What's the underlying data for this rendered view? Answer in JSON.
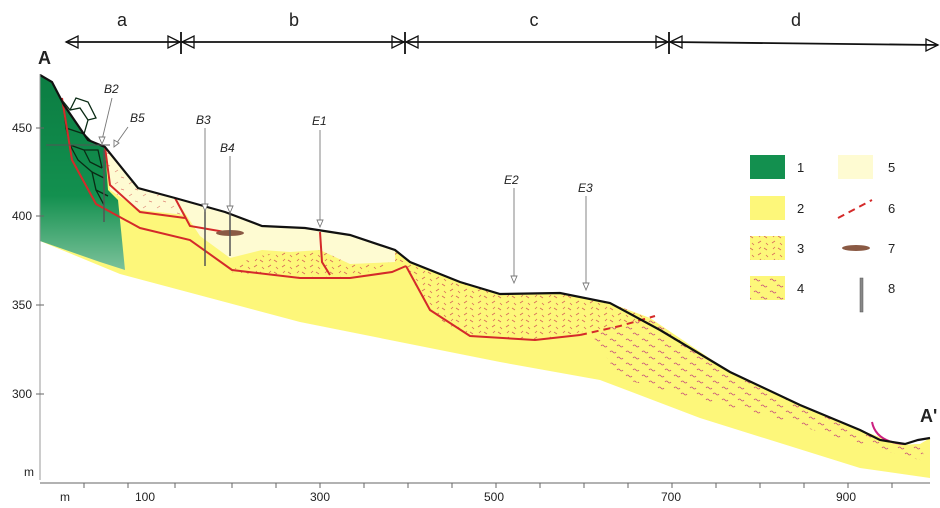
{
  "zones": [
    {
      "id": "a",
      "label": "a"
    },
    {
      "id": "b",
      "label": "b"
    },
    {
      "id": "c",
      "label": "c"
    },
    {
      "id": "d",
      "label": "d"
    }
  ],
  "profile_points": {
    "start": "A",
    "end": "A'"
  },
  "y_axis": {
    "unit": "m",
    "ticks": [
      "450",
      "400",
      "350",
      "300"
    ]
  },
  "x_axis": {
    "unit": "m",
    "ticks": [
      "100",
      "300",
      "500",
      "700",
      "900"
    ]
  },
  "boreholes": {
    "B2": "B2",
    "B5": "B5",
    "B3": "B3",
    "B4": "B4",
    "E1": "E1",
    "E2": "E2",
    "E3": "E3"
  },
  "legend": [
    "1",
    "2",
    "3",
    "4",
    "5",
    "6",
    "7",
    "8"
  ],
  "colors": {
    "bedrock": "#0f8a4a",
    "yellow": "#fdf77a",
    "pale": "#fefbd2",
    "boundary": "#d42a2a",
    "surface": "#111111",
    "lens": "#8a5a44"
  }
}
